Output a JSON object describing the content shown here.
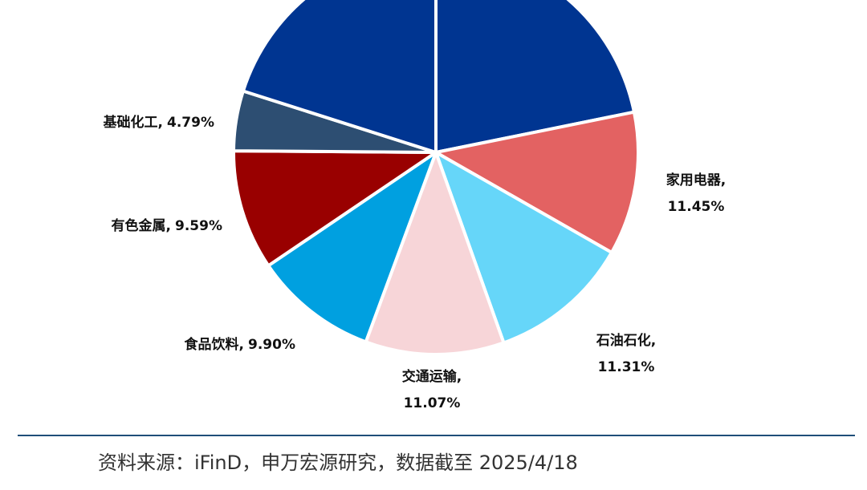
{
  "chart_data": {
    "type": "pie",
    "categories": [
      null,
      "家用电器,",
      "石油石化,",
      "交通运输,",
      "食品饮料,",
      "有色金属,",
      "基础化工,",
      null
    ],
    "values": [
      21.8,
      11.45,
      11.31,
      11.07,
      9.9,
      9.59,
      4.79,
      20.09
    ],
    "value_labels": [
      null,
      "11.45%",
      "11.31%",
      "11.07%",
      "9.90%",
      "9.59%",
      "4.79%",
      null
    ],
    "colors": [
      "#003591",
      "#e36262",
      "#66d6f9",
      "#f7d5d8",
      "#00a0e0",
      "#990000",
      "#2d4e72",
      "#003591"
    ],
    "source": "资料来源：iFinD，申万宏源研究，数据截至 2025/4/18"
  }
}
